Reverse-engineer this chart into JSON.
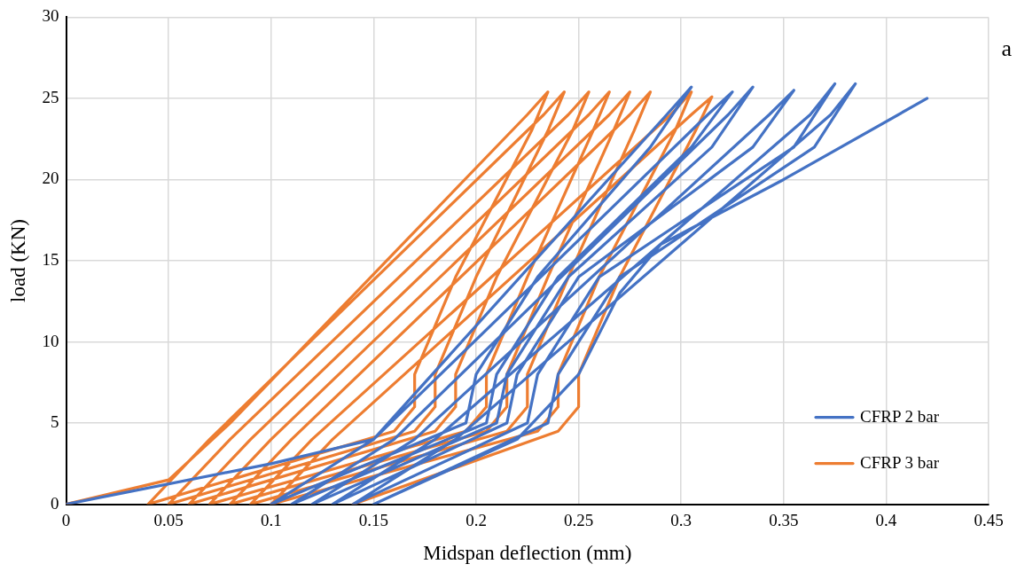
{
  "chart_data": {
    "type": "line",
    "xlabel": "Midspan deflection (mm)",
    "ylabel": "load (KN)",
    "annotations": [
      "a"
    ],
    "xlim": [
      0,
      0.45
    ],
    "xticks": [
      0,
      0.05,
      0.1,
      0.15,
      0.2,
      0.25,
      0.3,
      0.35,
      0.4,
      0.45
    ],
    "ylim": [
      0,
      30
    ],
    "yticks": [
      0,
      5,
      10,
      15,
      20,
      25,
      30
    ],
    "grid": true,
    "legend": "bottom right",
    "marker": "none",
    "line_style": "solid",
    "series": [
      {
        "name": "CFRP 2 bar",
        "color": "#4472c4",
        "x": [
          0,
          0.1,
          0.15,
          0.293,
          0.305,
          0.285,
          0.23,
          0.2,
          0.195,
          0.1,
          0.15,
          0.313,
          0.325,
          0.305,
          0.24,
          0.21,
          0.205,
          0.11,
          0.16,
          0.323,
          0.335,
          0.315,
          0.245,
          0.215,
          0.21,
          0.12,
          0.17,
          0.343,
          0.355,
          0.335,
          0.25,
          0.22,
          0.215,
          0.13,
          0.18,
          0.363,
          0.375,
          0.355,
          0.26,
          0.23,
          0.225,
          0.14,
          0.19,
          0.373,
          0.385,
          0.365,
          0.27,
          0.24,
          0.235,
          0.15,
          0.22,
          0.25,
          0.27,
          0.29,
          0.35,
          0.42
        ],
        "values": [
          0,
          2.5,
          4,
          24,
          25.7,
          22,
          14,
          8,
          5,
          0,
          4,
          24,
          25.4,
          22,
          14,
          8,
          5,
          0,
          4,
          24,
          25.7,
          22,
          14,
          8,
          5,
          0,
          4,
          24,
          25.5,
          22,
          14,
          8,
          5,
          0,
          4,
          24,
          25.9,
          22,
          14,
          8,
          5,
          0,
          4,
          24,
          25.9,
          22,
          14,
          8,
          5,
          0,
          4,
          8,
          13,
          16,
          20,
          25
        ]
      },
      {
        "name": "CFRP 3 bar",
        "color": "#ed7d31",
        "x": [
          0,
          0.05,
          0.08,
          0.225,
          0.235,
          0.227,
          0.19,
          0.17,
          0.17,
          0.16,
          0.04,
          0.07,
          0.233,
          0.243,
          0.235,
          0.2,
          0.18,
          0.18,
          0.17,
          0.05,
          0.08,
          0.245,
          0.255,
          0.247,
          0.21,
          0.19,
          0.19,
          0.18,
          0.06,
          0.09,
          0.255,
          0.265,
          0.257,
          0.225,
          0.205,
          0.205,
          0.195,
          0.07,
          0.1,
          0.265,
          0.275,
          0.267,
          0.235,
          0.215,
          0.215,
          0.205,
          0.08,
          0.11,
          0.275,
          0.285,
          0.277,
          0.245,
          0.225,
          0.225,
          0.215,
          0.09,
          0.12,
          0.295,
          0.305,
          0.297,
          0.26,
          0.24,
          0.24,
          0.23,
          0.1,
          0.13,
          0.305,
          0.315,
          0.307,
          0.27,
          0.25,
          0.25,
          0.24,
          0.14
        ],
        "values": [
          0,
          1.5,
          5,
          24,
          25.4,
          23,
          14,
          8,
          6,
          4.5,
          0,
          4,
          24,
          25.4,
          23,
          14,
          8,
          6,
          4.5,
          0,
          4,
          24,
          25.4,
          23,
          14,
          8,
          6,
          4.5,
          0,
          4,
          24,
          25.4,
          23,
          14,
          8,
          6,
          4.5,
          0,
          4,
          24,
          25.4,
          23,
          14,
          8,
          6,
          4.5,
          0,
          4,
          24,
          25.4,
          23,
          14,
          8,
          6,
          4.5,
          0,
          4,
          24,
          25.4,
          23,
          14,
          8,
          6,
          4.5,
          0,
          4,
          24,
          25.1,
          23,
          14,
          8,
          6,
          4.5,
          0
        ]
      }
    ]
  }
}
